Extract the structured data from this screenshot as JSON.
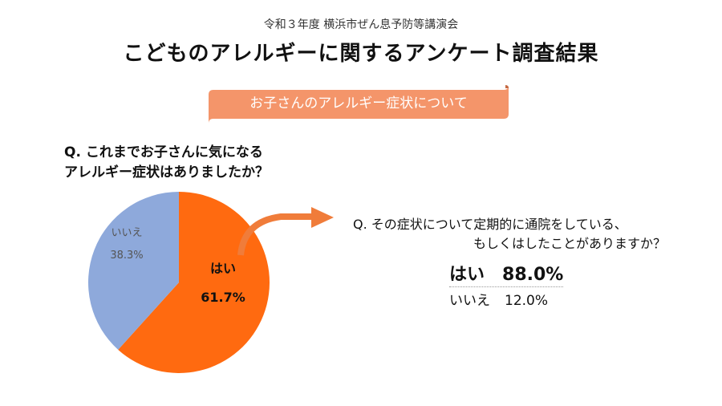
{
  "header": {
    "subtitle": "令和３年度 横浜市ぜん息予防等講演会",
    "title": "こどものアレルギーに関するアンケート調査結果"
  },
  "banner": {
    "label": "お子さんのアレルギー症状について",
    "color": "#F4956A"
  },
  "question1": {
    "line1": "Q. これまでお子さんに気になる",
    "line2": "アレルギー症状はありましたか？"
  },
  "question2": {
    "line1": "Q. その症状について定期的に通院をしている、",
    "line2": "もしくはしたことがありますか？"
  },
  "answers2": {
    "yes_label": "はい",
    "yes_value": "88.0%",
    "no_label": "いいえ",
    "no_value": "12.0%"
  },
  "colors": {
    "yes": "#FF6A10",
    "no": "#8EA9DB",
    "arrow": "#F07C3A"
  },
  "chart_data": {
    "type": "pie",
    "categories": [
      "はい",
      "いいえ"
    ],
    "values": [
      61.7,
      38.3
    ],
    "labels": [
      "61.7%",
      "38.3%"
    ],
    "colors": [
      "#FF6A10",
      "#8EA9DB"
    ]
  }
}
